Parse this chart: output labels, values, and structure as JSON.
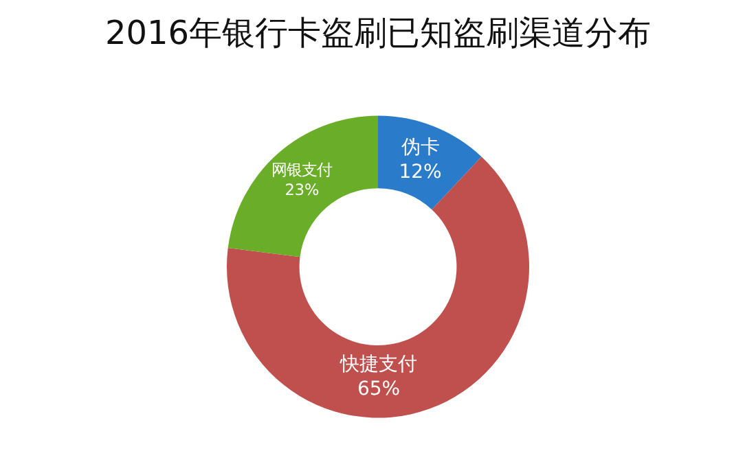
{
  "chart_data": {
    "type": "donut",
    "title": "2016年银行卡盗刷已知盗刷渠道分布",
    "categories": [
      "伪卡",
      "快捷支付",
      "网银支付"
    ],
    "values": [
      12,
      65,
      23
    ],
    "value_labels": [
      "12%",
      "65%",
      "23%"
    ],
    "colors": [
      "#2a7bc9",
      "#c0504d",
      "#69ad28"
    ],
    "legend": false
  }
}
